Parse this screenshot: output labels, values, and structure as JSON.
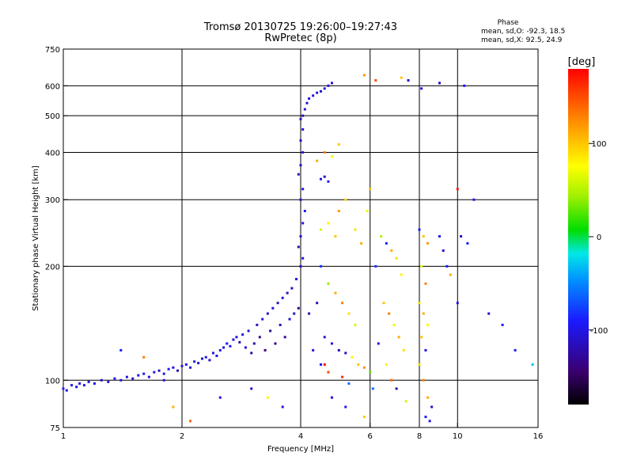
{
  "chart_data": {
    "type": "scatter",
    "title": "Tromsø 20130725 19:26:00–19:27:43",
    "subtitle": "RwPretec (8p)",
    "xlabel": "Frequency [MHz]",
    "ylabel": "Stationary phase Virtual Height [km]",
    "x_scale": "log",
    "y_scale": "log",
    "xlim": [
      1,
      16
    ],
    "ylim": [
      75,
      750
    ],
    "x_ticks": [
      1,
      2,
      4,
      6,
      8,
      10,
      16
    ],
    "y_ticks": [
      75,
      100,
      200,
      300,
      400,
      500,
      600,
      750
    ],
    "x_grid": [
      1,
      2,
      4,
      6,
      8,
      10
    ],
    "y_grid": [
      100,
      200,
      300,
      400,
      500,
      600
    ],
    "grid": true,
    "phase_header": "Phase",
    "phase_stats": [
      "mean, sd,O: -92.3, 18.5",
      "mean, sd,X:  92.5, 24.9"
    ],
    "colorbar": {
      "label": "[deg]",
      "range": [
        -180,
        180
      ],
      "ticks": [
        100,
        0,
        -100
      ]
    },
    "series": [
      {
        "values": [
          [
            1.0,
            95,
            -95
          ],
          [
            1.02,
            94,
            -100
          ],
          [
            1.05,
            97,
            -100
          ],
          [
            1.08,
            96,
            -105
          ],
          [
            1.1,
            98,
            -100
          ],
          [
            1.13,
            97,
            -95
          ],
          [
            1.16,
            99,
            -105
          ],
          [
            1.2,
            98,
            -100
          ],
          [
            1.25,
            100,
            -110
          ],
          [
            1.3,
            99,
            -100
          ],
          [
            1.35,
            101,
            -95
          ],
          [
            1.4,
            100,
            -105
          ],
          [
            1.45,
            102,
            -100
          ],
          [
            1.5,
            101,
            -110
          ],
          [
            1.55,
            103,
            -100
          ],
          [
            1.6,
            104,
            -95
          ],
          [
            1.65,
            102,
            -105
          ],
          [
            1.7,
            105,
            -100
          ],
          [
            1.75,
            106,
            -110
          ],
          [
            1.8,
            104,
            -100
          ],
          [
            1.85,
            107,
            -95
          ],
          [
            1.9,
            108,
            -100
          ],
          [
            1.95,
            106,
            -120
          ],
          [
            2.0,
            109,
            -100
          ],
          [
            2.05,
            110,
            -95
          ],
          [
            2.1,
            108,
            -110
          ],
          [
            2.15,
            112,
            -100
          ],
          [
            2.2,
            111,
            -105
          ],
          [
            2.25,
            114,
            -100
          ],
          [
            2.3,
            115,
            -95
          ],
          [
            2.35,
            113,
            -110
          ],
          [
            2.4,
            118,
            -100
          ],
          [
            2.45,
            116,
            -105
          ],
          [
            2.5,
            120,
            -100
          ],
          [
            2.55,
            122,
            -110
          ],
          [
            2.6,
            125,
            -100
          ],
          [
            2.65,
            123,
            -95
          ],
          [
            2.7,
            128,
            -105
          ],
          [
            2.75,
            130,
            -100
          ],
          [
            2.8,
            126,
            -120
          ],
          [
            2.85,
            132,
            -100
          ],
          [
            2.9,
            122,
            -110
          ],
          [
            2.95,
            135,
            -100
          ],
          [
            3.0,
            118,
            -130
          ],
          [
            3.05,
            125,
            -125
          ],
          [
            3.1,
            140,
            -110
          ],
          [
            3.15,
            130,
            -135
          ],
          [
            3.2,
            145,
            -100
          ],
          [
            3.25,
            120,
            -140
          ],
          [
            3.3,
            150,
            -110
          ],
          [
            3.35,
            135,
            -130
          ],
          [
            3.4,
            155,
            -100
          ],
          [
            3.45,
            125,
            -140
          ],
          [
            3.5,
            160,
            -110
          ],
          [
            3.55,
            140,
            -120
          ],
          [
            3.6,
            165,
            -100
          ],
          [
            3.65,
            130,
            -130
          ],
          [
            3.7,
            170,
            -110
          ],
          [
            3.75,
            145,
            -100
          ],
          [
            3.8,
            175,
            -120
          ],
          [
            3.85,
            150,
            -110
          ],
          [
            3.9,
            185,
            -100
          ],
          [
            3.95,
            155,
            -140
          ],
          [
            4.0,
            200,
            -110
          ],
          [
            4.05,
            210,
            -100
          ],
          [
            3.95,
            225,
            -120
          ],
          [
            4.0,
            240,
            -110
          ],
          [
            4.05,
            260,
            -100
          ],
          [
            4.1,
            280,
            -90
          ],
          [
            4.0,
            300,
            -110
          ],
          [
            4.05,
            320,
            -100
          ],
          [
            3.95,
            350,
            -120
          ],
          [
            4.0,
            370,
            -110
          ],
          [
            4.05,
            400,
            -100
          ],
          [
            4.0,
            430,
            -110
          ],
          [
            4.05,
            460,
            -100
          ],
          [
            4.0,
            490,
            -110
          ],
          [
            4.05,
            500,
            -120
          ],
          [
            4.1,
            520,
            -100
          ],
          [
            4.15,
            540,
            -110
          ],
          [
            4.2,
            555,
            -100
          ],
          [
            4.3,
            565,
            -110
          ],
          [
            4.4,
            575,
            -100
          ],
          [
            4.5,
            580,
            -110
          ],
          [
            4.6,
            590,
            -100
          ],
          [
            4.7,
            600,
            -110
          ],
          [
            4.8,
            610,
            -100
          ],
          [
            4.5,
            340,
            -100
          ],
          [
            4.6,
            345,
            -110
          ],
          [
            4.7,
            335,
            -90
          ],
          [
            4.5,
            250,
            60
          ],
          [
            4.7,
            260,
            80
          ],
          [
            4.9,
            240,
            100
          ],
          [
            5.0,
            280,
            120
          ],
          [
            5.2,
            300,
            90
          ],
          [
            4.4,
            380,
            110
          ],
          [
            4.6,
            400,
            130
          ],
          [
            4.8,
            390,
            70
          ],
          [
            5.0,
            420,
            100
          ],
          [
            4.5,
            200,
            -80
          ],
          [
            4.7,
            180,
            40
          ],
          [
            4.9,
            170,
            110
          ],
          [
            5.1,
            160,
            130
          ],
          [
            5.3,
            150,
            90
          ],
          [
            5.5,
            140,
            60
          ],
          [
            4.6,
            130,
            -110
          ],
          [
            4.8,
            125,
            -100
          ],
          [
            5.0,
            120,
            -120
          ],
          [
            5.2,
            118,
            -110
          ],
          [
            5.4,
            115,
            80
          ],
          [
            5.6,
            110,
            100
          ],
          [
            5.8,
            108,
            120
          ],
          [
            6.0,
            105,
            30
          ],
          [
            4.2,
            150,
            -120
          ],
          [
            4.4,
            160,
            -110
          ],
          [
            4.3,
            120,
            -100
          ],
          [
            4.5,
            110,
            -90
          ],
          [
            4.7,
            105,
            150
          ],
          [
            5.1,
            102,
            160
          ],
          [
            5.3,
            98,
            -60
          ],
          [
            5.5,
            250,
            90
          ],
          [
            5.7,
            230,
            110
          ],
          [
            5.9,
            280,
            70
          ],
          [
            6.0,
            320,
            100
          ],
          [
            6.2,
            200,
            -80
          ],
          [
            6.4,
            240,
            50
          ],
          [
            6.6,
            230,
            -90
          ],
          [
            6.8,
            220,
            110
          ],
          [
            7.0,
            210,
            90
          ],
          [
            7.2,
            190,
            80
          ],
          [
            6.5,
            160,
            100
          ],
          [
            6.7,
            150,
            130
          ],
          [
            6.9,
            140,
            70
          ],
          [
            7.1,
            130,
            110
          ],
          [
            7.3,
            120,
            90
          ],
          [
            6.3,
            125,
            -100
          ],
          [
            6.6,
            110,
            80
          ],
          [
            6.8,
            100,
            140
          ],
          [
            7.0,
            95,
            -120
          ],
          [
            7.4,
            88,
            60
          ],
          [
            8.0,
            250,
            -90
          ],
          [
            8.2,
            240,
            100
          ],
          [
            8.4,
            230,
            120
          ],
          [
            8.1,
            200,
            70
          ],
          [
            8.3,
            180,
            130
          ],
          [
            8.0,
            160,
            90
          ],
          [
            8.2,
            150,
            110
          ],
          [
            8.4,
            140,
            80
          ],
          [
            8.1,
            130,
            100
          ],
          [
            8.3,
            120,
            -100
          ],
          [
            8.0,
            110,
            90
          ],
          [
            8.2,
            100,
            130
          ],
          [
            8.4,
            90,
            110
          ],
          [
            8.6,
            85,
            -110
          ],
          [
            8.3,
            80,
            -90
          ],
          [
            9.0,
            240,
            -100
          ],
          [
            9.2,
            220,
            -110
          ],
          [
            9.4,
            200,
            -90
          ],
          [
            9.6,
            190,
            110
          ],
          [
            10.0,
            160,
            -100
          ],
          [
            10.2,
            240,
            -110
          ],
          [
            10.6,
            230,
            -90
          ],
          [
            11.0,
            300,
            -100
          ],
          [
            12.0,
            150,
            -110
          ],
          [
            13.0,
            140,
            -90
          ],
          [
            14.0,
            120,
            -100
          ],
          [
            15.5,
            110,
            -30
          ],
          [
            7.5,
            620,
            -110
          ],
          [
            8.1,
            590,
            -100
          ],
          [
            9.0,
            610,
            -120
          ],
          [
            6.2,
            620,
            150
          ],
          [
            5.8,
            640,
            120
          ],
          [
            7.2,
            630,
            100
          ],
          [
            10.0,
            320,
            170
          ],
          [
            10.4,
            600,
            -100
          ],
          [
            1.4,
            120,
            -90
          ],
          [
            1.6,
            115,
            130
          ],
          [
            1.8,
            100,
            -100
          ],
          [
            1.9,
            85,
            110
          ],
          [
            2.1,
            78,
            140
          ],
          [
            2.5,
            90,
            -100
          ],
          [
            3.0,
            95,
            -110
          ],
          [
            3.3,
            90,
            80
          ],
          [
            3.6,
            85,
            -100
          ],
          [
            4.8,
            90,
            -110
          ],
          [
            5.2,
            85,
            -100
          ],
          [
            5.8,
            80,
            100
          ],
          [
            6.1,
            95,
            -60
          ],
          [
            8.5,
            78,
            -100
          ],
          [
            4.6,
            110,
            175
          ]
        ]
      }
    ]
  }
}
